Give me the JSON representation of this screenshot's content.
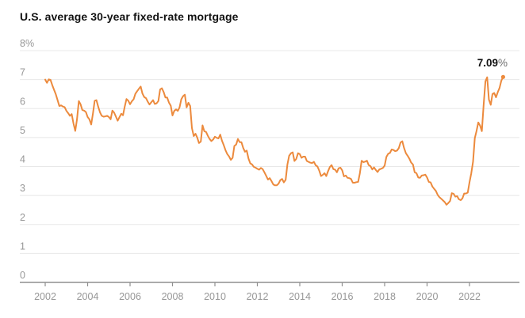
{
  "header": {
    "title": "U.S. average 30-year fixed-rate mortgage"
  },
  "annotation": {
    "value": "7.09",
    "suffix": "%"
  },
  "colors": {
    "line": "#EC8A3D",
    "title_text": "#121212",
    "axis_text": "#979797",
    "gridline": "#e8e8e8",
    "axis_line": "#8f8f8f",
    "background": "#ffffff"
  },
  "chart_data": {
    "type": "line",
    "title": "U.S. average 30-year fixed-rate mortgage",
    "series_name": "30-year fixed-rate mortgage (%)",
    "x_unit": "monthly",
    "x_start_year": 2002,
    "x_end": "Aug 2023",
    "xlim": [
      2002,
      2023.8
    ],
    "ylim": [
      0,
      8
    ],
    "grid": true,
    "legend": false,
    "last_value_label": "7.09%",
    "y_ticks": [
      {
        "value": 8,
        "label": "8%"
      },
      {
        "value": 7,
        "label": "7"
      },
      {
        "value": 6,
        "label": "6"
      },
      {
        "value": 5,
        "label": "5"
      },
      {
        "value": 4,
        "label": "4"
      },
      {
        "value": 3,
        "label": "3"
      },
      {
        "value": 2,
        "label": "2"
      },
      {
        "value": 1,
        "label": "1"
      },
      {
        "value": 0,
        "label": "0"
      }
    ],
    "x_ticks": [
      {
        "year": 2002,
        "label": "2002"
      },
      {
        "year": 2004,
        "label": "2004"
      },
      {
        "year": 2006,
        "label": "2006"
      },
      {
        "year": 2008,
        "label": "2008"
      },
      {
        "year": 2010,
        "label": "2010"
      },
      {
        "year": 2012,
        "label": "2012"
      },
      {
        "year": 2014,
        "label": "2014"
      },
      {
        "year": 2016,
        "label": "2016"
      },
      {
        "year": 2018,
        "label": "2018"
      },
      {
        "year": 2020,
        "label": "2020"
      },
      {
        "year": 2022,
        "label": "2022"
      }
    ],
    "values": [
      7.0,
      6.89,
      7.01,
      6.99,
      6.81,
      6.65,
      6.49,
      6.29,
      6.09,
      6.11,
      6.07,
      6.05,
      5.92,
      5.84,
      5.75,
      5.81,
      5.48,
      5.23,
      5.63,
      6.26,
      6.15,
      5.95,
      5.93,
      5.88,
      5.71,
      5.63,
      5.45,
      5.83,
      6.27,
      6.29,
      6.06,
      5.87,
      5.75,
      5.72,
      5.73,
      5.75,
      5.71,
      5.63,
      5.93,
      5.86,
      5.72,
      5.58,
      5.7,
      5.82,
      5.77,
      6.07,
      6.33,
      6.27,
      6.15,
      6.25,
      6.32,
      6.51,
      6.6,
      6.68,
      6.76,
      6.52,
      6.4,
      6.36,
      6.24,
      6.14,
      6.22,
      6.29,
      6.16,
      6.18,
      6.26,
      6.66,
      6.7,
      6.57,
      6.38,
      6.38,
      6.21,
      6.1,
      5.76,
      5.92,
      5.97,
      5.92,
      6.04,
      6.32,
      6.43,
      6.48,
      6.04,
      6.2,
      6.09,
      5.33,
      5.05,
      5.13,
      5.0,
      4.81,
      4.86,
      5.42,
      5.22,
      5.19,
      5.06,
      4.95,
      4.88,
      4.93,
      5.03,
      4.99,
      4.97,
      5.1,
      4.89,
      4.74,
      4.56,
      4.43,
      4.35,
      4.23,
      4.3,
      4.71,
      4.76,
      4.95,
      4.84,
      4.84,
      4.64,
      4.51,
      4.55,
      4.27,
      4.11,
      4.07,
      3.99,
      3.96,
      3.92,
      3.89,
      3.95,
      3.91,
      3.8,
      3.68,
      3.55,
      3.6,
      3.5,
      3.38,
      3.35,
      3.35,
      3.41,
      3.53,
      3.57,
      3.45,
      3.54,
      4.07,
      4.37,
      4.46,
      4.49,
      4.19,
      4.26,
      4.46,
      4.43,
      4.3,
      4.34,
      4.34,
      4.19,
      4.16,
      4.13,
      4.12,
      4.16,
      4.04,
      4.0,
      3.86,
      3.67,
      3.71,
      3.77,
      3.67,
      3.84,
      3.98,
      4.05,
      3.91,
      3.89,
      3.8,
      3.94,
      3.96,
      3.87,
      3.66,
      3.69,
      3.61,
      3.6,
      3.57,
      3.44,
      3.44,
      3.46,
      3.47,
      3.77,
      4.2,
      4.15,
      4.17,
      4.2,
      4.05,
      4.01,
      3.9,
      3.97,
      3.88,
      3.81,
      3.9,
      3.92,
      3.95,
      4.03,
      4.33,
      4.44,
      4.47,
      4.59,
      4.57,
      4.53,
      4.55,
      4.63,
      4.83,
      4.87,
      4.64,
      4.46,
      4.37,
      4.27,
      4.14,
      4.07,
      3.8,
      3.77,
      3.62,
      3.61,
      3.69,
      3.7,
      3.72,
      3.62,
      3.47,
      3.45,
      3.31,
      3.23,
      3.16,
      3.02,
      2.94,
      2.89,
      2.83,
      2.77,
      2.68,
      2.74,
      2.81,
      3.08,
      3.06,
      2.96,
      2.98,
      2.87,
      2.84,
      2.9,
      3.07,
      3.07,
      3.1,
      3.45,
      3.76,
      4.17,
      4.98,
      5.23,
      5.52,
      5.41,
      5.22,
      6.11,
      6.94,
      7.08,
      6.31,
      6.13,
      6.5,
      6.54,
      6.39,
      6.57,
      6.71,
      6.96,
      7.09
    ]
  }
}
